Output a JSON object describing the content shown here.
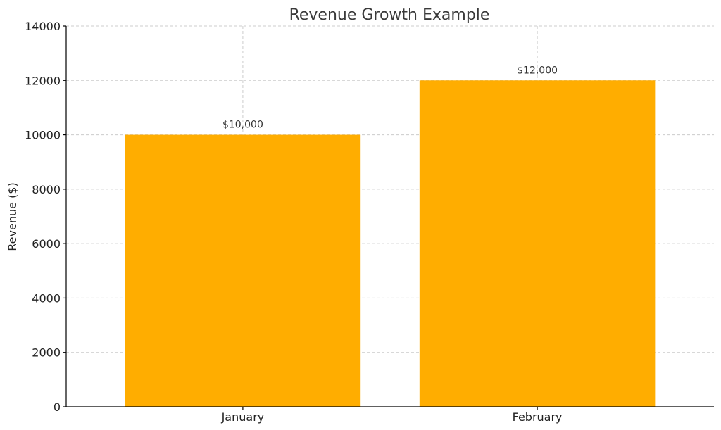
{
  "chart_data": {
    "type": "bar",
    "title": "Revenue Growth Example",
    "xlabel": "",
    "ylabel": "Revenue ($)",
    "categories": [
      "January",
      "February"
    ],
    "values": [
      10000,
      12000
    ],
    "data_labels": [
      "$10,000",
      "$12,000"
    ],
    "ylim": [
      0,
      14000
    ],
    "yticks": [
      0,
      2000,
      4000,
      6000,
      8000,
      10000,
      12000,
      14000
    ],
    "ytick_labels": [
      "0",
      "2000",
      "4000",
      "6000",
      "8000",
      "10000",
      "12000",
      "14000"
    ],
    "grid": true,
    "bar_color": "#ffad00"
  }
}
